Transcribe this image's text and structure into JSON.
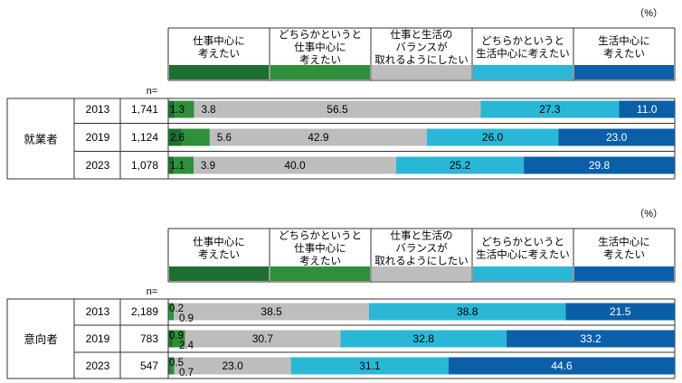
{
  "unit": "（%）",
  "n_label": "n=",
  "categories": [
    "仕事中心に考えたい",
    "どちらかというと仕事中心に考えたい",
    "仕事と生活のバランスが取れるようにしたい",
    "どちらかというと生活中心に考えたい",
    "生活中心に考えたい"
  ],
  "header_lines": [
    [
      "仕事中心に",
      "考えたい"
    ],
    [
      "どちらかというと",
      "仕事中心に",
      "考えたい"
    ],
    [
      "仕事と生活の",
      "バランスが",
      "取れるようにしたい"
    ],
    [
      "どちらかというと",
      "生活中心に考えたい"
    ],
    [
      "生活中心に",
      "考えたい"
    ]
  ],
  "colors": [
    "#1e6e32",
    "#2f8f3a",
    "#bdbdbd",
    "#2ab7d6",
    "#0b5ea8"
  ],
  "chart_data": [
    {
      "type": "bar",
      "group": "就業者",
      "categories": [
        "仕事中心に考えたい",
        "どちらかというと仕事中心に考えたい",
        "仕事と生活のバランスが取れるようにしたい",
        "どちらかというと生活中心に考えたい",
        "生活中心に考えたい"
      ],
      "rows": [
        {
          "year": "2013",
          "n": "1,741",
          "values": [
            1.3,
            3.8,
            56.5,
            27.3,
            11.0
          ],
          "labels": [
            "1.3",
            "3.8",
            "56.5",
            "27.3",
            "11.0"
          ]
        },
        {
          "year": "2019",
          "n": "1,124",
          "values": [
            2.6,
            5.6,
            42.9,
            26.0,
            23.0
          ],
          "labels": [
            "2.6",
            "5.6",
            "42.9",
            "26.0",
            "23.0"
          ]
        },
        {
          "year": "2023",
          "n": "1,078",
          "values": [
            1.1,
            3.9,
            40.0,
            25.2,
            29.8
          ],
          "labels": [
            "1.1",
            "3.9",
            "40.0",
            "25.2",
            "29.8"
          ]
        }
      ]
    },
    {
      "type": "bar",
      "group": "意向者",
      "categories": [
        "仕事中心に考えたい",
        "どちらかというと仕事中心に考えたい",
        "仕事と生活のバランスが取れるようにしたい",
        "どちらかというと生活中心に考えたい",
        "生活中心に考えたい"
      ],
      "rows": [
        {
          "year": "2013",
          "n": "2,189",
          "values": [
            0.2,
            0.9,
            38.5,
            38.8,
            21.5
          ],
          "labels": [
            "0.2",
            "0.9",
            "38.5",
            "38.8",
            "21.5"
          ]
        },
        {
          "year": "2019",
          "n": "783",
          "values": [
            0.9,
            2.4,
            30.7,
            32.8,
            33.2
          ],
          "labels": [
            "0.9",
            "2.4",
            "30.7",
            "32.8",
            "33.2"
          ]
        },
        {
          "year": "2023",
          "n": "547",
          "values": [
            0.5,
            0.7,
            23.0,
            31.1,
            44.6
          ],
          "labels": [
            "0.5",
            "0.7",
            "23.0",
            "31.1",
            "44.6"
          ]
        }
      ]
    }
  ]
}
